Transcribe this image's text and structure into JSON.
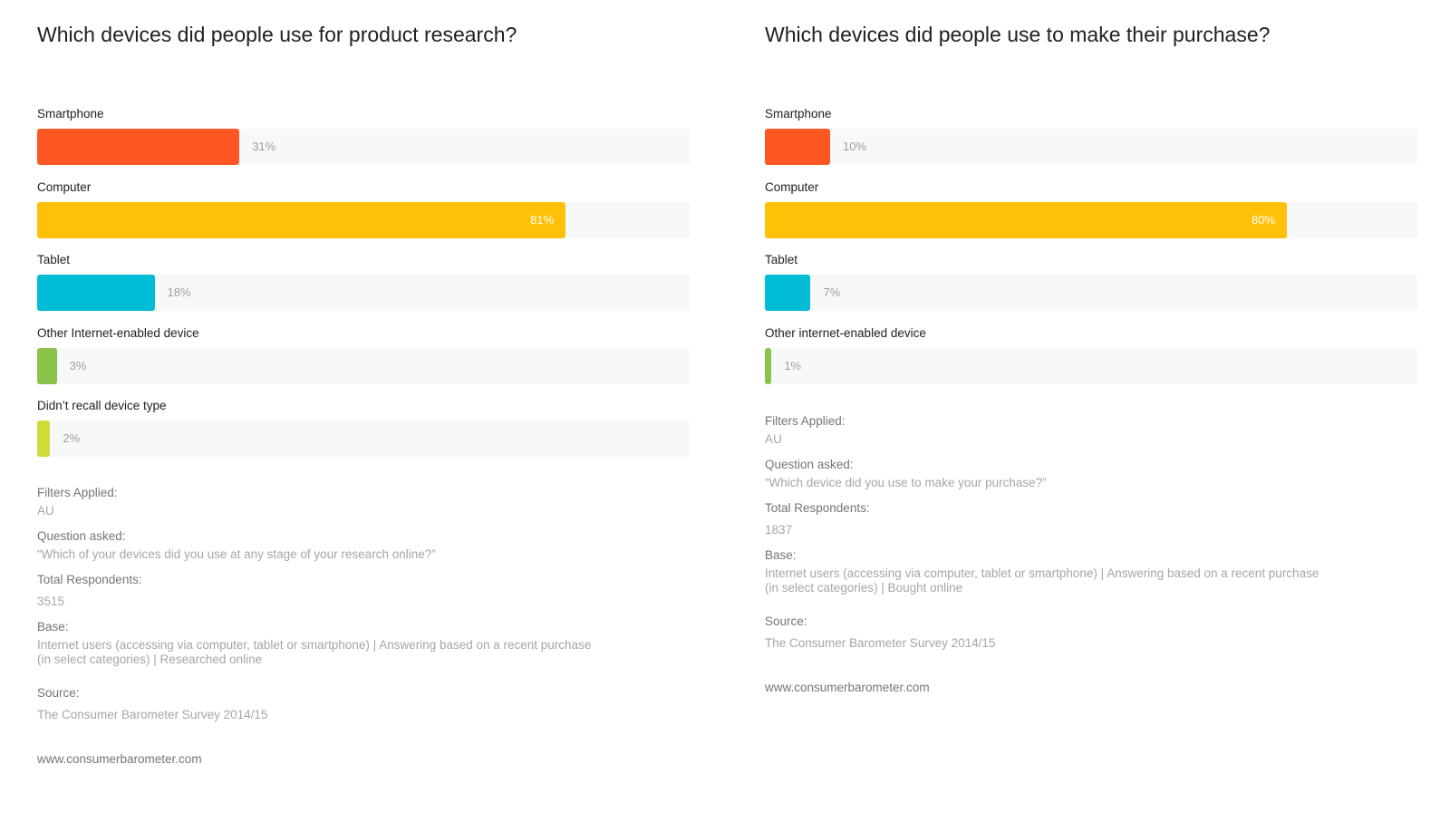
{
  "colors": {
    "smartphone": "#ff5722",
    "computer": "#ffc107",
    "tablet": "#00bcd4",
    "other": "#8bc34a",
    "didnt_recall": "#cddc39",
    "track": "#f7f8f9"
  },
  "chart_data": [
    {
      "type": "bar",
      "orientation": "horizontal",
      "title": "Which devices did people use for product research?",
      "categories": [
        "Smartphone",
        "Computer",
        "Tablet",
        "Other Internet-enabled device",
        "Didn’t recall device type"
      ],
      "values": [
        31,
        81,
        18,
        3,
        2
      ],
      "value_labels": [
        "31%",
        "81%",
        "18%",
        "3%",
        "2%"
      ],
      "colors": [
        "#ff5722",
        "#ffc107",
        "#00bcd4",
        "#8bc34a",
        "#cddc39"
      ],
      "xlim": [
        0,
        100
      ],
      "grid": false
    },
    {
      "type": "bar",
      "orientation": "horizontal",
      "title": "Which devices did people use to make their purchase?",
      "categories": [
        "Smartphone",
        "Computer",
        "Tablet",
        "Other internet-enabled device"
      ],
      "values": [
        10,
        80,
        7,
        1
      ],
      "value_labels": [
        "10%",
        "80%",
        "7%",
        "1%"
      ],
      "colors": [
        "#ff5722",
        "#ffc107",
        "#00bcd4",
        "#8bc34a"
      ],
      "xlim": [
        0,
        100
      ],
      "grid": false
    }
  ],
  "left": {
    "filters_label": "Filters Applied:",
    "filters_value": "AU",
    "question_label": "Question asked:",
    "question_value": "“Which of your devices did you use at any stage of your research online?”",
    "respondents_label": "Total Respondents:",
    "respondents_value": "3515",
    "base_label": "Base:",
    "base_value": "Internet users (accessing via computer, tablet or smartphone) | Answering based on a recent purchase\n(in select categories) | Researched online",
    "source_label": "Source:",
    "source_value": "The Consumer Barometer Survey 2014/15",
    "website": "www.consumerbarometer.com"
  },
  "right": {
    "filters_label": "Filters Applied:",
    "filters_value": "AU",
    "question_label": "Question asked:",
    "question_value": "“Which device did you use to make your purchase?”",
    "respondents_label": "Total Respondents:",
    "respondents_value": "1837",
    "base_label": "Base:",
    "base_value": "Internet users (accessing via computer, tablet or smartphone) | Answering based on a recent purchase\n(in select categories) | Bought online",
    "source_label": "Source:",
    "source_value": "The Consumer Barometer Survey 2014/15",
    "website": "www.consumerbarometer.com"
  }
}
